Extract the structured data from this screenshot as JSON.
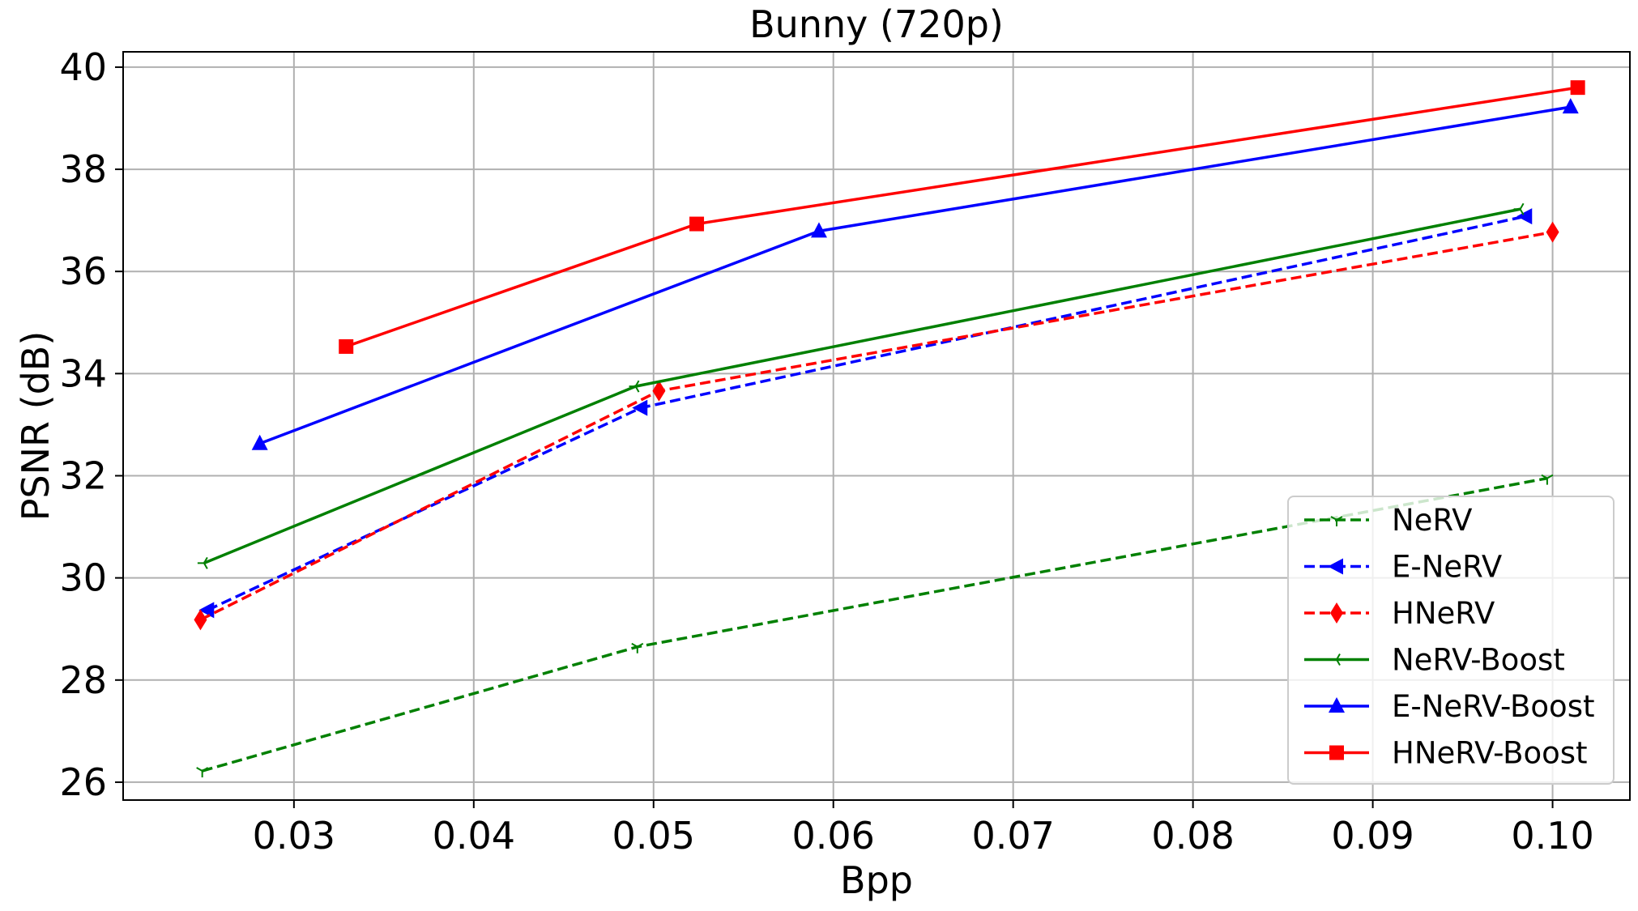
{
  "chart_data": {
    "type": "line",
    "title": "Bunny (720p)",
    "xlabel": "Bpp",
    "ylabel": "PSNR (dB)",
    "xlim": [
      0.0205,
      0.1043
    ],
    "ylim": [
      25.65,
      40.3
    ],
    "xticks": [
      0.03,
      0.04,
      0.05,
      0.06,
      0.07,
      0.08,
      0.09,
      0.1
    ],
    "xtick_labels": [
      "0.03",
      "0.04",
      "0.05",
      "0.06",
      "0.07",
      "0.08",
      "0.09",
      "0.10"
    ],
    "yticks": [
      26,
      28,
      30,
      32,
      34,
      36,
      38,
      40
    ],
    "ytick_labels": [
      "26",
      "28",
      "30",
      "32",
      "34",
      "36",
      "38",
      "40"
    ],
    "grid": true,
    "legend_position": "bottom-right",
    "series": [
      {
        "name": "NeRV",
        "color": "#008000",
        "dash": true,
        "marker": "tri_down",
        "x": [
          0.0249,
          0.0491,
          0.0997
        ],
        "y": [
          26.22,
          28.65,
          31.95
        ]
      },
      {
        "name": "E-NeRV",
        "color": "#0000ff",
        "dash": true,
        "marker": "triangle_left",
        "x": [
          0.0252,
          0.0493,
          0.0985
        ],
        "y": [
          29.37,
          33.33,
          37.08
        ]
      },
      {
        "name": "HNeRV",
        "color": "#ff0000",
        "dash": true,
        "marker": "thin_diamond",
        "x": [
          0.0248,
          0.0503,
          0.1
        ],
        "y": [
          29.18,
          33.66,
          36.77
        ]
      },
      {
        "name": "NeRV-Boost",
        "color": "#008000",
        "dash": false,
        "marker": "tri_left",
        "x": [
          0.025,
          0.049,
          0.0982
        ],
        "y": [
          30.29,
          33.75,
          37.22
        ]
      },
      {
        "name": "E-NeRV-Boost",
        "color": "#0000ff",
        "dash": false,
        "marker": "triangle_up",
        "x": [
          0.0281,
          0.0592,
          0.101
        ],
        "y": [
          32.63,
          36.79,
          39.22
        ]
      },
      {
        "name": "HNeRV-Boost",
        "color": "#ff0000",
        "dash": false,
        "marker": "square",
        "x": [
          0.0329,
          0.0524,
          0.1014
        ],
        "y": [
          34.53,
          36.93,
          39.6
        ]
      }
    ]
  }
}
